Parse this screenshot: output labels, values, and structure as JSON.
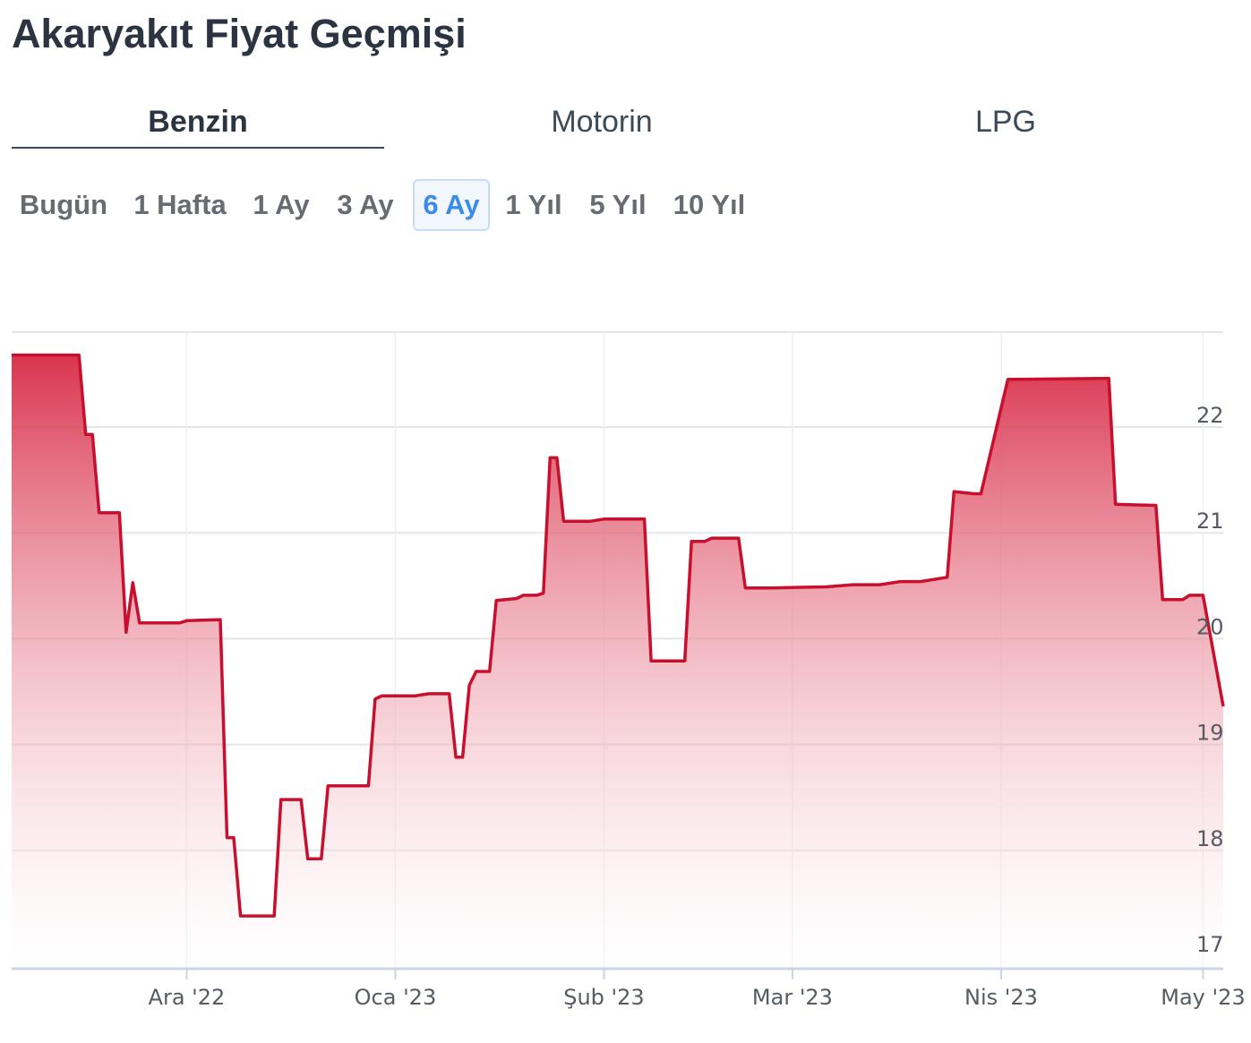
{
  "page": {
    "title": "Akaryakıt Fiyat Geçmişi"
  },
  "fuel_tabs": [
    {
      "label": "Benzin",
      "active": true
    },
    {
      "label": "Motorin",
      "active": false
    },
    {
      "label": "LPG",
      "active": false
    }
  ],
  "range_buttons": [
    {
      "label": "Bugün",
      "active": false
    },
    {
      "label": "1 Hafta",
      "active": false
    },
    {
      "label": "1 Ay",
      "active": false
    },
    {
      "label": "3 Ay",
      "active": false
    },
    {
      "label": "6 Ay",
      "active": true
    },
    {
      "label": "1 Yıl",
      "active": false
    },
    {
      "label": "5 Yıl",
      "active": false
    },
    {
      "label": "10 Yıl",
      "active": false
    }
  ],
  "chart_data": {
    "type": "area",
    "x_start": "2022-11-05",
    "x_end": "2023-05-04",
    "ylim": [
      17,
      23
    ],
    "y_ticks": [
      17,
      18,
      19,
      20,
      21,
      22
    ],
    "x_ticks": [
      {
        "date": "2022-12-01",
        "label": "Ara '22"
      },
      {
        "date": "2023-01-01",
        "label": "Oca '23"
      },
      {
        "date": "2023-02-01",
        "label": "Şub '23"
      },
      {
        "date": "2023-03-01",
        "label": "Mar '23"
      },
      {
        "date": "2023-04-01",
        "label": "Nis '23"
      },
      {
        "date": "2023-05-01",
        "label": "May '23"
      }
    ],
    "grid": {
      "horizontal": true,
      "vertical": true
    },
    "line_color": "#c8102e",
    "fill_top_color": "#d82a45",
    "fill_bottom_color": "#ffffff",
    "series": [
      {
        "points": [
          [
            "2022-11-05",
            22.68
          ],
          [
            "2022-11-15",
            22.68
          ],
          [
            "2022-11-16",
            21.93
          ],
          [
            "2022-11-17",
            21.93
          ],
          [
            "2022-11-18",
            21.19
          ],
          [
            "2022-11-21",
            21.19
          ],
          [
            "2022-11-22",
            20.06
          ],
          [
            "2022-11-23",
            20.53
          ],
          [
            "2022-11-24",
            20.15
          ],
          [
            "2022-11-30",
            20.15
          ],
          [
            "2022-12-01",
            20.17
          ],
          [
            "2022-12-06",
            20.18
          ],
          [
            "2022-12-07",
            18.12
          ],
          [
            "2022-12-08",
            18.12
          ],
          [
            "2022-12-09",
            17.38
          ],
          [
            "2022-12-14",
            17.38
          ],
          [
            "2022-12-15",
            18.48
          ],
          [
            "2022-12-18",
            18.48
          ],
          [
            "2022-12-19",
            17.92
          ],
          [
            "2022-12-21",
            17.92
          ],
          [
            "2022-12-22",
            18.61
          ],
          [
            "2022-12-28",
            18.61
          ],
          [
            "2022-12-29",
            19.43
          ],
          [
            "2022-12-30",
            19.46
          ],
          [
            "2023-01-04",
            19.46
          ],
          [
            "2023-01-06",
            19.48
          ],
          [
            "2023-01-09",
            19.48
          ],
          [
            "2023-01-10",
            18.88
          ],
          [
            "2023-01-11",
            18.88
          ],
          [
            "2023-01-12",
            19.56
          ],
          [
            "2023-01-13",
            19.69
          ],
          [
            "2023-01-15",
            19.69
          ],
          [
            "2023-01-16",
            20.36
          ],
          [
            "2023-01-19",
            20.38
          ],
          [
            "2023-01-20",
            20.41
          ],
          [
            "2023-01-22",
            20.41
          ],
          [
            "2023-01-23",
            20.43
          ],
          [
            "2023-01-24",
            21.71
          ],
          [
            "2023-01-25",
            21.71
          ],
          [
            "2023-01-26",
            21.11
          ],
          [
            "2023-01-30",
            21.11
          ],
          [
            "2023-02-01",
            21.13
          ],
          [
            "2023-02-07",
            21.13
          ],
          [
            "2023-02-08",
            19.79
          ],
          [
            "2023-02-13",
            19.79
          ],
          [
            "2023-02-14",
            20.92
          ],
          [
            "2023-02-16",
            20.92
          ],
          [
            "2023-02-17",
            20.95
          ],
          [
            "2023-02-21",
            20.95
          ],
          [
            "2023-02-22",
            20.48
          ],
          [
            "2023-02-26",
            20.48
          ],
          [
            "2023-03-06",
            20.49
          ],
          [
            "2023-03-10",
            20.51
          ],
          [
            "2023-03-14",
            20.51
          ],
          [
            "2023-03-17",
            20.54
          ],
          [
            "2023-03-20",
            20.54
          ],
          [
            "2023-03-24",
            20.58
          ],
          [
            "2023-03-25",
            21.39
          ],
          [
            "2023-03-28",
            21.37
          ],
          [
            "2023-03-29",
            21.37
          ],
          [
            "2023-04-02",
            22.45
          ],
          [
            "2023-04-17",
            22.46
          ],
          [
            "2023-04-18",
            21.27
          ],
          [
            "2023-04-24",
            21.26
          ],
          [
            "2023-04-25",
            20.37
          ],
          [
            "2023-04-28",
            20.37
          ],
          [
            "2023-04-29",
            20.41
          ],
          [
            "2023-04-30",
            20.41
          ],
          [
            "2023-05-01",
            20.41
          ],
          [
            "2023-05-04",
            19.36
          ]
        ]
      }
    ]
  }
}
